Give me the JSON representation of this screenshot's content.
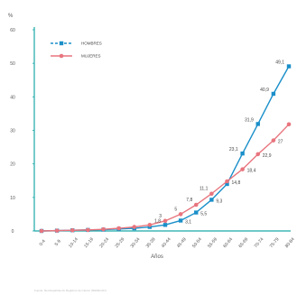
{
  "chart_data": {
    "type": "line",
    "ylabel": "%",
    "xlabel": "Años",
    "source": "Fuente: Red Española de Registros de Cáncer (REDECAN)",
    "ylim": [
      0,
      60
    ],
    "yticks": [
      "0",
      "10",
      "20",
      "30",
      "40",
      "50",
      "60"
    ],
    "grid": false,
    "legend_position": "top-left",
    "categories": [
      "0-4",
      "5-9",
      "10-14",
      "15-19",
      "20-24",
      "25-29",
      "30-34",
      "35-39",
      "40-44",
      "45-49",
      "50-54",
      "55-59",
      "60-64",
      "65-69",
      "70-74",
      "75-79",
      "80-84"
    ],
    "series": [
      {
        "name": "HOMBRES",
        "color": "#1a8fc9",
        "dash": true,
        "marker": "square",
        "values": [
          0,
          0.1,
          0.2,
          0.3,
          0.4,
          0.6,
          0.8,
          1.2,
          1.8,
          3.1,
          5.5,
          9.3,
          14,
          23.1,
          31.9,
          40.9,
          49.1
        ],
        "labels": [
          null,
          null,
          null,
          null,
          null,
          null,
          null,
          null,
          "1,8",
          "3,1",
          "5,5",
          "9,3",
          null,
          "23,1",
          "31,9",
          "40,9",
          "49,1"
        ]
      },
      {
        "name": "MUJERES",
        "color": "#e8757e",
        "dash": false,
        "marker": "circle",
        "values": [
          0,
          0.1,
          0.2,
          0.3,
          0.5,
          0.8,
          1.2,
          1.8,
          3,
          5,
          7.8,
          11.1,
          14.8,
          18.4,
          22.9,
          27,
          31.8
        ],
        "labels": [
          null,
          null,
          null,
          null,
          null,
          null,
          null,
          null,
          "3",
          "5",
          "7,8",
          "11,1",
          "14,8",
          "18,4",
          "22,9",
          "27",
          null
        ]
      }
    ]
  }
}
